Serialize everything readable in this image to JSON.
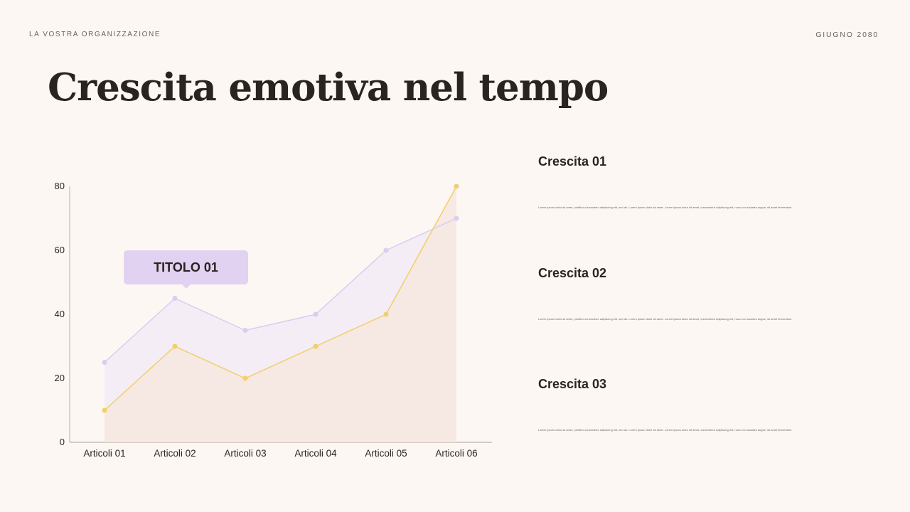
{
  "header": {
    "organization": "LA VOSTRA ORGANIZZAZIONE",
    "date": "GIUGNO 2080"
  },
  "title": "Crescita emotiva nel tempo",
  "callout": "TITOLO 01",
  "items": [
    {
      "title": "Crescita 01",
      "text": "Lorem ipsum dolor sit amet, porttitor consectetur adipiscing elit, sed do. Lorem ipsum dolor sit amet. Lorem ipsum dolor sit amet, consectetur adipiscing elit, nunc non sodales augue, sit amet fermentum."
    },
    {
      "title": "Crescita 02",
      "text": "Lorem ipsum dolor sit amet, porttitor consectetur adipiscing elit, sed do. Lorem ipsum dolor sit amet. Lorem ipsum dolor sit amet, consectetur adipiscing elit, nunc non sodales augue, sit amet fermentum."
    },
    {
      "title": "Crescita 03",
      "text": "Lorem ipsum dolor sit amet, porttitor consectetur adipiscing elit, sed do. Lorem ipsum dolor sit amet. Lorem ipsum dolor sit amet, consectetur adipiscing elit, nunc non sodales augue, sit amet fermentum."
    }
  ],
  "chart_data": {
    "type": "area",
    "categories": [
      "Articoli 01",
      "Articoli 02",
      "Articoli 03",
      "Articoli 04",
      "Articoli 05",
      "Articoli 06"
    ],
    "series": [
      {
        "values": [
          25,
          45,
          35,
          40,
          60,
          70
        ],
        "color": "#d9cdf0",
        "fill": "#f3ebf6"
      },
      {
        "values": [
          10,
          30,
          20,
          30,
          40,
          80
        ],
        "color": "#f2cf6a",
        "fill": "#f6e6df"
      }
    ],
    "yticks": [
      0,
      20,
      40,
      60,
      80
    ],
    "ylim": [
      0,
      80
    ],
    "grid": false,
    "legend": "none"
  }
}
